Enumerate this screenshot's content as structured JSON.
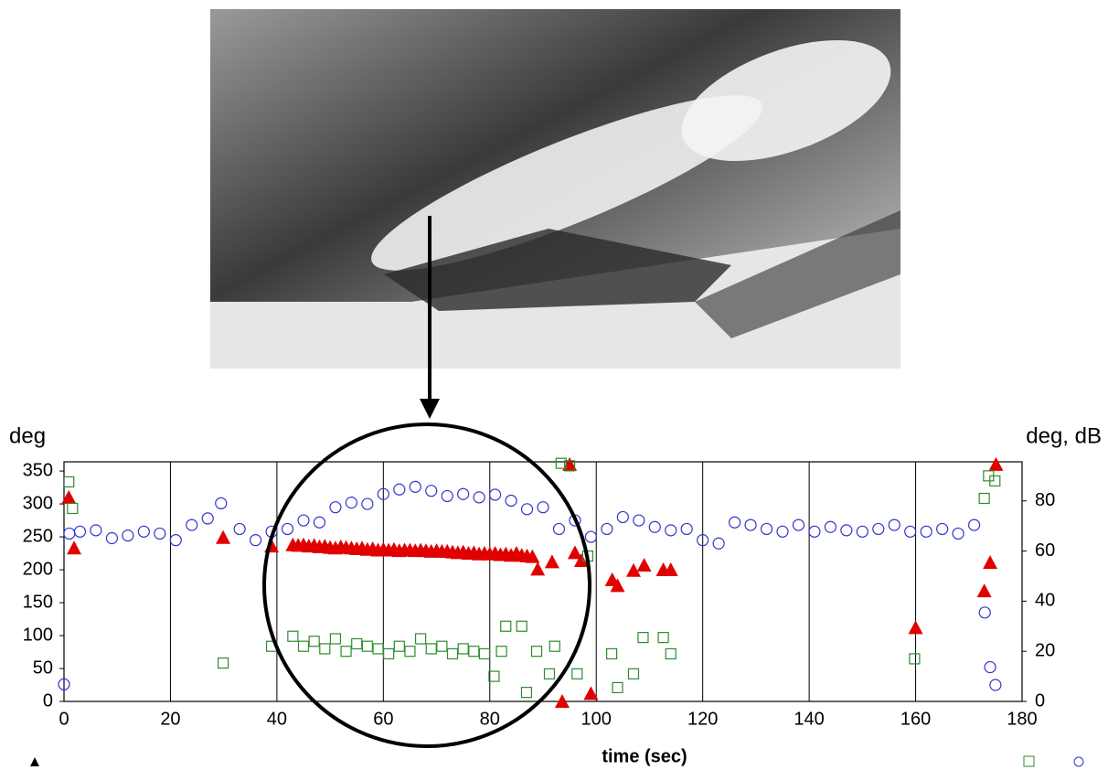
{
  "chart_data": {
    "type": "scatter",
    "x_label": "time (sec)",
    "y_label": "deg",
    "y2_label": "deg, dB",
    "xlim": [
      0,
      180
    ],
    "xticks": [
      0,
      20,
      40,
      60,
      80,
      100,
      120,
      140,
      160,
      180
    ],
    "ylim": [
      0,
      364
    ],
    "yticks": [
      0,
      50,
      100,
      150,
      200,
      250,
      300,
      350
    ],
    "y2lim": [
      0,
      95.6
    ],
    "y2ticks": [
      0,
      20,
      40,
      60,
      80
    ],
    "grid": "x",
    "series": [
      {
        "marker": "triangle",
        "color": "#e00000",
        "axis": "y",
        "x": [
          0.9,
          1.9,
          29.9,
          39,
          43,
          44,
          45,
          46,
          47,
          48,
          49,
          50,
          51,
          52,
          53,
          54,
          55,
          56,
          57,
          58,
          59,
          60,
          61,
          62,
          63,
          64,
          65,
          66,
          67,
          68,
          69,
          70,
          71,
          72,
          73,
          74,
          75,
          76,
          77,
          78,
          79,
          80,
          81,
          82,
          83,
          84,
          85,
          86,
          87,
          88,
          89,
          91.7,
          93.6,
          95,
          96,
          97.2,
          99,
          103,
          104,
          107,
          109,
          112.6,
          114,
          160,
          172.9,
          174,
          175.1
        ],
        "values": [
          310,
          233,
          249,
          236,
          238,
          237,
          238,
          236,
          237,
          235,
          236,
          234,
          233,
          235,
          234,
          233,
          232,
          233,
          231,
          232,
          230,
          231,
          230,
          231,
          229,
          230,
          230,
          229,
          230,
          229,
          228,
          229,
          228,
          228,
          227,
          226,
          227,
          225,
          226,
          224,
          225,
          224,
          225,
          223,
          224,
          222,
          225,
          222,
          221,
          220,
          201,
          212,
          0,
          360,
          226,
          214,
          12,
          185,
          176,
          199,
          207,
          200,
          200,
          112,
          168,
          211,
          360
        ]
      },
      {
        "marker": "square",
        "color": "#2e8b2e",
        "axis": "y2",
        "x": [
          0.9,
          1.6,
          29.9,
          39,
          43,
          45,
          47,
          49,
          51,
          53,
          55,
          57,
          59,
          61,
          63,
          65,
          67,
          69,
          71,
          73,
          75,
          77,
          79,
          80.8,
          82.2,
          83,
          86,
          86.9,
          88.8,
          91.2,
          92.2,
          93.4,
          95,
          96.4,
          98.4,
          102.9,
          104,
          107,
          108.8,
          112.6,
          114,
          159.8,
          172.9,
          173.7,
          174.9
        ],
        "values": [
          87.6,
          77,
          15.3,
          22,
          26,
          22,
          24,
          21,
          25,
          20,
          23,
          22,
          21,
          19,
          22,
          20,
          25,
          21,
          22,
          19,
          21,
          20,
          19,
          10,
          20,
          30,
          30,
          3.6,
          20,
          11,
          22,
          95,
          94,
          11,
          58,
          19,
          5.5,
          11,
          25.5,
          25.5,
          19,
          17,
          81,
          90,
          88
        ]
      },
      {
        "marker": "circle",
        "color": "#3333cc",
        "axis": "y",
        "x": [
          0,
          1,
          3,
          6,
          9,
          12,
          15,
          18,
          21,
          24,
          27,
          29.5,
          33,
          36,
          39,
          42,
          45,
          48,
          51,
          54,
          57,
          60,
          63,
          66,
          69,
          72,
          75,
          78,
          81,
          84,
          87,
          90,
          93,
          96,
          99,
          102,
          105,
          108,
          111,
          114,
          117,
          120,
          123,
          126,
          129,
          132,
          135,
          138,
          141,
          144,
          147,
          150,
          153,
          156,
          159,
          162,
          165,
          168,
          171,
          173,
          174,
          175
        ],
        "values": [
          26,
          255,
          258,
          260,
          248,
          252,
          258,
          255,
          245,
          268,
          278,
          301,
          262,
          245,
          258,
          262,
          275,
          272,
          295,
          302,
          300,
          315,
          322,
          326,
          320,
          312,
          315,
          310,
          314,
          305,
          292,
          295,
          262,
          275,
          250,
          262,
          280,
          275,
          265,
          260,
          262,
          245,
          240,
          272,
          268,
          262,
          258,
          268,
          258,
          265,
          260,
          258,
          262,
          268,
          258,
          258,
          262,
          255,
          268,
          135,
          52,
          25
        ]
      }
    ]
  }
}
